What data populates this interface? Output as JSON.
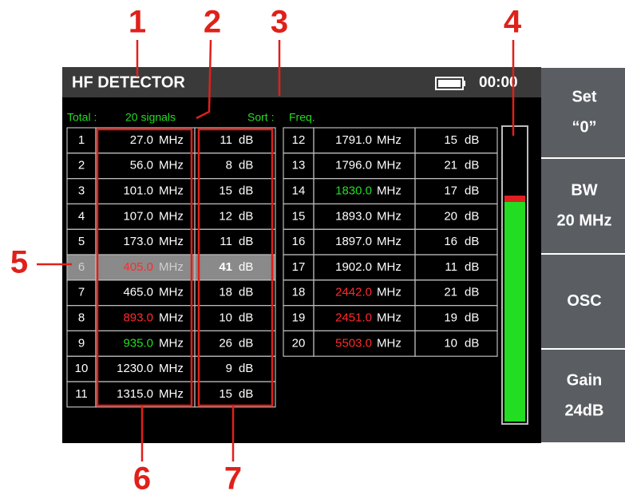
{
  "annotations": [
    "1",
    "2",
    "3",
    "4",
    "5",
    "6",
    "7"
  ],
  "header": {
    "title": "HF DETECTOR",
    "time": "00:00"
  },
  "status": {
    "total_label": "Total :",
    "total_value": "20 signals",
    "sort_label": "Sort :",
    "sort_value": "Freq."
  },
  "tables": [
    {
      "rows": [
        {
          "no": "1",
          "freq": "27.0",
          "freq_unit": "MHz",
          "level": "11",
          "level_unit": "dB",
          "freq_color": "#ffffff",
          "highlight": false
        },
        {
          "no": "2",
          "freq": "56.0",
          "freq_unit": "MHz",
          "level": "8",
          "level_unit": "dB",
          "freq_color": "#ffffff",
          "highlight": false
        },
        {
          "no": "3",
          "freq": "101.0",
          "freq_unit": "MHz",
          "level": "15",
          "level_unit": "dB",
          "freq_color": "#ffffff",
          "highlight": false
        },
        {
          "no": "4",
          "freq": "107.0",
          "freq_unit": "MHz",
          "level": "12",
          "level_unit": "dB",
          "freq_color": "#ffffff",
          "highlight": false
        },
        {
          "no": "5",
          "freq": "173.0",
          "freq_unit": "MHz",
          "level": "11",
          "level_unit": "dB",
          "freq_color": "#ffffff",
          "highlight": false
        },
        {
          "no": "6",
          "freq": "405.0",
          "freq_unit": "MHz",
          "level": "41",
          "level_unit": "dB",
          "freq_color": "#ff2a2a",
          "highlight": true
        },
        {
          "no": "7",
          "freq": "465.0",
          "freq_unit": "MHz",
          "level": "18",
          "level_unit": "dB",
          "freq_color": "#ffffff",
          "highlight": false
        },
        {
          "no": "8",
          "freq": "893.0",
          "freq_unit": "MHz",
          "level": "10",
          "level_unit": "dB",
          "freq_color": "#ff2a2a",
          "highlight": false
        },
        {
          "no": "9",
          "freq": "935.0",
          "freq_unit": "MHz",
          "level": "26",
          "level_unit": "dB",
          "freq_color": "#22dd22",
          "highlight": false
        },
        {
          "no": "10",
          "freq": "1230.0",
          "freq_unit": "MHz",
          "level": "9",
          "level_unit": "dB",
          "freq_color": "#ffffff",
          "highlight": false
        },
        {
          "no": "11",
          "freq": "1315.0",
          "freq_unit": "MHz",
          "level": "15",
          "level_unit": "dB",
          "freq_color": "#ffffff",
          "highlight": false
        }
      ]
    },
    {
      "rows": [
        {
          "no": "12",
          "freq": "1791.0",
          "freq_unit": "MHz",
          "level": "15",
          "level_unit": "dB",
          "freq_color": "#ffffff",
          "highlight": false
        },
        {
          "no": "13",
          "freq": "1796.0",
          "freq_unit": "MHz",
          "level": "21",
          "level_unit": "dB",
          "freq_color": "#ffffff",
          "highlight": false
        },
        {
          "no": "14",
          "freq": "1830.0",
          "freq_unit": "MHz",
          "level": "17",
          "level_unit": "dB",
          "freq_color": "#22dd22",
          "highlight": false
        },
        {
          "no": "15",
          "freq": "1893.0",
          "freq_unit": "MHz",
          "level": "20",
          "level_unit": "dB",
          "freq_color": "#ffffff",
          "highlight": false
        },
        {
          "no": "16",
          "freq": "1897.0",
          "freq_unit": "MHz",
          "level": "16",
          "level_unit": "dB",
          "freq_color": "#ffffff",
          "highlight": false
        },
        {
          "no": "17",
          "freq": "1902.0",
          "freq_unit": "MHz",
          "level": "11",
          "level_unit": "dB",
          "freq_color": "#ffffff",
          "highlight": false
        },
        {
          "no": "18",
          "freq": "2442.0",
          "freq_unit": "MHz",
          "level": "21",
          "level_unit": "dB",
          "freq_color": "#ff2a2a",
          "highlight": false
        },
        {
          "no": "19",
          "freq": "2451.0",
          "freq_unit": "MHz",
          "level": "19",
          "level_unit": "dB",
          "freq_color": "#ff2a2a",
          "highlight": false
        },
        {
          "no": "20",
          "freq": "5503.0",
          "freq_unit": "MHz",
          "level": "10",
          "level_unit": "dB",
          "freq_color": "#ff2a2a",
          "highlight": false
        }
      ]
    }
  ],
  "buttons": [
    {
      "lines": [
        "Set",
        "“0”"
      ]
    },
    {
      "lines": [
        "BW",
        "20 MHz"
      ]
    },
    {
      "lines": [
        "OSC"
      ]
    },
    {
      "lines": [
        "Gain",
        "24dB"
      ]
    }
  ]
}
